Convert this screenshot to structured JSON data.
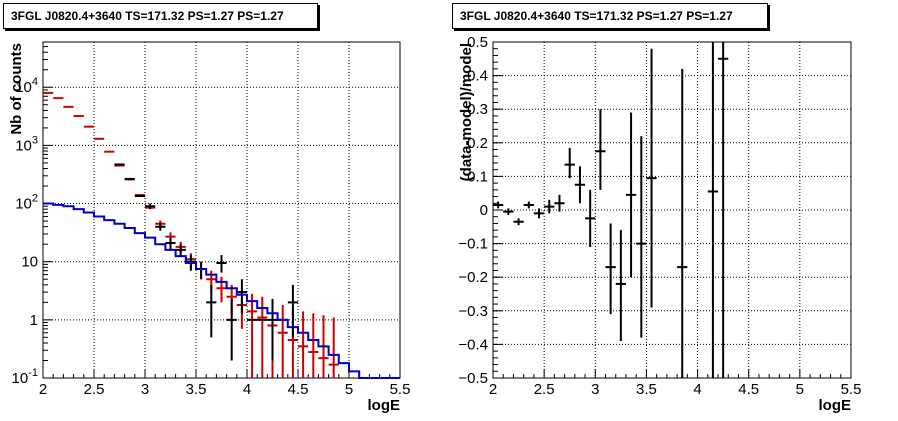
{
  "chart_data": [
    {
      "type": "scatter",
      "title": "3FGL J0820.4+3640 TS=171.32 PS=1.27 PS=1.27",
      "xlabel": "logE",
      "ylabel": "Nb of counts",
      "xlim": [
        2,
        5.5
      ],
      "ylim": [
        0.1,
        60000
      ],
      "log_y": true,
      "grid": true,
      "x_ticks": [
        "2",
        "2.5",
        "3",
        "3.5",
        "4",
        "4.5",
        "5",
        "5.5"
      ],
      "y_ticks": [
        "10^-1",
        "1",
        "10",
        "10^2",
        "10^3",
        "10^4"
      ],
      "series": [
        {
          "color": "#cc0000",
          "style": "points-with-errors",
          "points": [
            {
              "x": 2.05,
              "y": 8000
            },
            {
              "x": 2.15,
              "y": 6500
            },
            {
              "x": 2.25,
              "y": 4600
            },
            {
              "x": 2.35,
              "y": 3200
            },
            {
              "x": 2.45,
              "y": 2100
            },
            {
              "x": 2.55,
              "y": 1300
            },
            {
              "x": 2.65,
              "y": 780
            },
            {
              "x": 2.75,
              "y": 450
            },
            {
              "x": 2.85,
              "y": 260
            },
            {
              "x": 2.95,
              "y": 140
            },
            {
              "x": 3.05,
              "y": 85
            },
            {
              "x": 3.15,
              "y": 45,
              "lo": 39,
              "hi": 51
            },
            {
              "x": 3.25,
              "y": 27,
              "lo": 22,
              "hi": 32
            },
            {
              "x": 3.35,
              "y": 18,
              "lo": 14,
              "hi": 22
            },
            {
              "x": 3.45,
              "y": 11,
              "lo": 8,
              "hi": 14
            },
            {
              "x": 3.55,
              "y": 7.5,
              "lo": 5,
              "hi": 10
            },
            {
              "x": 3.65,
              "y": 5,
              "lo": 3,
              "hi": 7
            },
            {
              "x": 3.75,
              "y": 3.5,
              "lo": 2,
              "hi": 5.5
            },
            {
              "x": 3.85,
              "y": 2.5,
              "lo": 1.2,
              "hi": 4
            },
            {
              "x": 3.95,
              "y": 1.8,
              "lo": 0.7,
              "hi": 3
            },
            {
              "x": 4.05,
              "y": 1.4,
              "lo": 0.1,
              "hi": 2.8
            },
            {
              "x": 4.15,
              "y": 1.1,
              "lo": 0.1,
              "hi": 2.5
            },
            {
              "x": 4.25,
              "y": 0.8,
              "lo": 0.1,
              "hi": 2.1
            },
            {
              "x": 4.35,
              "y": 0.6,
              "lo": 0.1,
              "hi": 1.8
            },
            {
              "x": 4.45,
              "y": 0.45,
              "lo": 0.1,
              "hi": 1.5
            },
            {
              "x": 4.55,
              "y": 0.35,
              "lo": 0.1,
              "hi": 1.4
            },
            {
              "x": 4.65,
              "y": 0.28,
              "lo": 0.1,
              "hi": 1.3
            },
            {
              "x": 4.75,
              "y": 0.22,
              "lo": 0.1,
              "hi": 1.2
            },
            {
              "x": 4.85,
              "y": 0.17,
              "lo": 0.1,
              "hi": 1.1
            }
          ]
        },
        {
          "color": "#000000",
          "style": "points-with-errors",
          "points": [
            {
              "x": 2.75,
              "y": 470
            },
            {
              "x": 2.85,
              "y": 265
            },
            {
              "x": 2.95,
              "y": 135
            },
            {
              "x": 3.05,
              "y": 90,
              "lo": 80,
              "hi": 100
            },
            {
              "x": 3.15,
              "y": 40,
              "lo": 34,
              "hi": 47
            },
            {
              "x": 3.25,
              "y": 21,
              "lo": 16,
              "hi": 26
            },
            {
              "x": 3.35,
              "y": 16,
              "lo": 12,
              "hi": 20
            },
            {
              "x": 3.45,
              "y": 10,
              "lo": 7,
              "hi": 13
            },
            {
              "x": 3.55,
              "y": 7.5,
              "lo": 5,
              "hi": 10
            },
            {
              "x": 3.65,
              "y": 2,
              "lo": 0.5,
              "hi": 4
            },
            {
              "x": 3.75,
              "y": 9.5,
              "lo": 6.5,
              "hi": 13
            },
            {
              "x": 3.85,
              "y": 1,
              "lo": 0.2,
              "hi": 2.3
            },
            {
              "x": 3.95,
              "y": 3,
              "lo": 1.3,
              "hi": 5
            },
            {
              "x": 4.05,
              "y": 1
            },
            {
              "x": 4.15,
              "y": 1
            },
            {
              "x": 4.25,
              "y": 1,
              "lo": 0.2,
              "hi": 2.3
            },
            {
              "x": 4.35,
              "y": 1
            },
            {
              "x": 4.45,
              "y": 2,
              "lo": 0.5,
              "hi": 4
            }
          ]
        },
        {
          "color": "#0000cc",
          "style": "step-line",
          "edges": [
            2.0,
            2.1,
            2.2,
            2.3,
            2.4,
            2.5,
            2.6,
            2.7,
            2.8,
            2.9,
            3.0,
            3.1,
            3.2,
            3.3,
            3.4,
            3.5,
            3.6,
            3.7,
            3.8,
            3.9,
            4.0,
            4.1,
            4.2,
            4.3,
            4.4,
            4.5,
            4.6,
            4.7,
            4.8,
            4.9,
            5.0,
            5.1,
            5.2,
            5.3,
            5.4,
            5.5
          ],
          "values": [
            100,
            95,
            90,
            80,
            70,
            60,
            52,
            45,
            38,
            31,
            26,
            20,
            16,
            12.5,
            9.5,
            7.5,
            6,
            4.5,
            3.5,
            2.7,
            2.1,
            1.6,
            1.3,
            1.0,
            0.75,
            0.6,
            0.45,
            0.35,
            0.25,
            0.18,
            0.13,
            0.1,
            0.1,
            0.1,
            0.1
          ]
        }
      ]
    },
    {
      "type": "scatter",
      "title": "3FGL J0820.4+3640 TS=171.32 PS=1.27 PS=1.27",
      "xlabel": "logE",
      "ylabel": "(data-model)/model",
      "xlim": [
        2,
        5.5
      ],
      "ylim": [
        -0.5,
        0.5
      ],
      "grid": true,
      "x_ticks": [
        "2",
        "2.5",
        "3",
        "3.5",
        "4",
        "4.5",
        "5",
        "5.5"
      ],
      "y_ticks": [
        "-0.5",
        "-0.4",
        "-0.3",
        "-0.2",
        "-0.1",
        "0",
        "0.1",
        "0.2",
        "0.3",
        "0.4",
        "0.5"
      ],
      "series": [
        {
          "color": "#000000",
          "style": "points-with-errors",
          "points": [
            {
              "x": 2.05,
              "y": 0.015,
              "lo": 0.005,
              "hi": 0.025
            },
            {
              "x": 2.15,
              "y": -0.005,
              "lo": -0.015,
              "hi": 0.005
            },
            {
              "x": 2.25,
              "y": -0.035,
              "lo": -0.045,
              "hi": -0.025
            },
            {
              "x": 2.35,
              "y": 0.015,
              "lo": 0.005,
              "hi": 0.025
            },
            {
              "x": 2.45,
              "y": -0.01,
              "lo": -0.025,
              "hi": 0.005
            },
            {
              "x": 2.55,
              "y": 0.01,
              "lo": -0.01,
              "hi": 0.03
            },
            {
              "x": 2.65,
              "y": 0.02,
              "lo": -0.005,
              "hi": 0.045
            },
            {
              "x": 2.75,
              "y": 0.135,
              "lo": 0.095,
              "hi": 0.185
            },
            {
              "x": 2.85,
              "y": 0.075,
              "lo": 0.02,
              "hi": 0.13
            },
            {
              "x": 2.95,
              "y": -0.025,
              "lo": -0.11,
              "hi": 0.06
            },
            {
              "x": 3.05,
              "y": 0.175,
              "lo": 0.06,
              "hi": 0.3
            },
            {
              "x": 3.15,
              "y": -0.17,
              "lo": -0.31,
              "hi": -0.04
            },
            {
              "x": 3.25,
              "y": -0.22,
              "lo": -0.39,
              "hi": -0.06
            },
            {
              "x": 3.35,
              "y": 0.045,
              "lo": -0.2,
              "hi": 0.29
            },
            {
              "x": 3.45,
              "y": -0.1,
              "lo": -0.38,
              "hi": 0.22
            },
            {
              "x": 3.55,
              "y": 0.095,
              "lo": -0.29,
              "hi": 0.48
            },
            {
              "x": 3.85,
              "y": -0.17,
              "lo": -0.5,
              "hi": 0.42
            },
            {
              "x": 4.15,
              "y": 0.055,
              "lo": -0.5,
              "hi": 0.5
            },
            {
              "x": 4.25,
              "y": 0.45,
              "lo": -0.5,
              "hi": 0.5
            }
          ]
        }
      ]
    }
  ]
}
